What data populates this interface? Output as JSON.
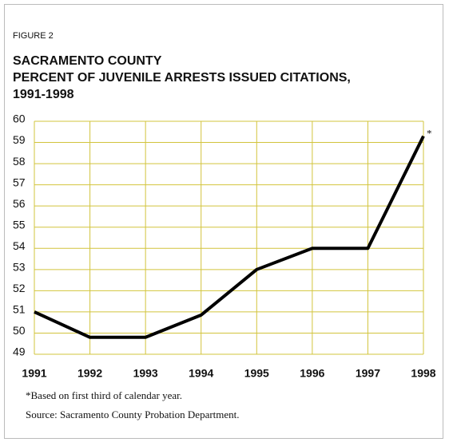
{
  "chart_data": {
    "type": "line",
    "label": "FIGURE 2",
    "title": [
      "SACRAMENTO COUNTY",
      "PERCENT OF JUVENILE ARRESTS ISSUED CITATIONS,",
      "1991-1998"
    ],
    "categories": [
      "1991",
      "1992",
      "1993",
      "1994",
      "1995",
      "1996",
      "1997",
      "1998"
    ],
    "series": [
      {
        "name": "Percent issued citations",
        "color": "#000000",
        "values": [
          51.0,
          49.8,
          49.8,
          50.85,
          53.0,
          54.0,
          54.0,
          59.3
        ]
      }
    ],
    "ylim": [
      49,
      60
    ],
    "yticks": [
      49,
      50,
      51,
      52,
      53,
      54,
      55,
      56,
      57,
      58,
      59,
      60
    ],
    "grid": true,
    "annotation": "*",
    "notes": [
      "*Based on first third of calendar year.",
      "Source: Sacramento County Probation Department."
    ]
  }
}
